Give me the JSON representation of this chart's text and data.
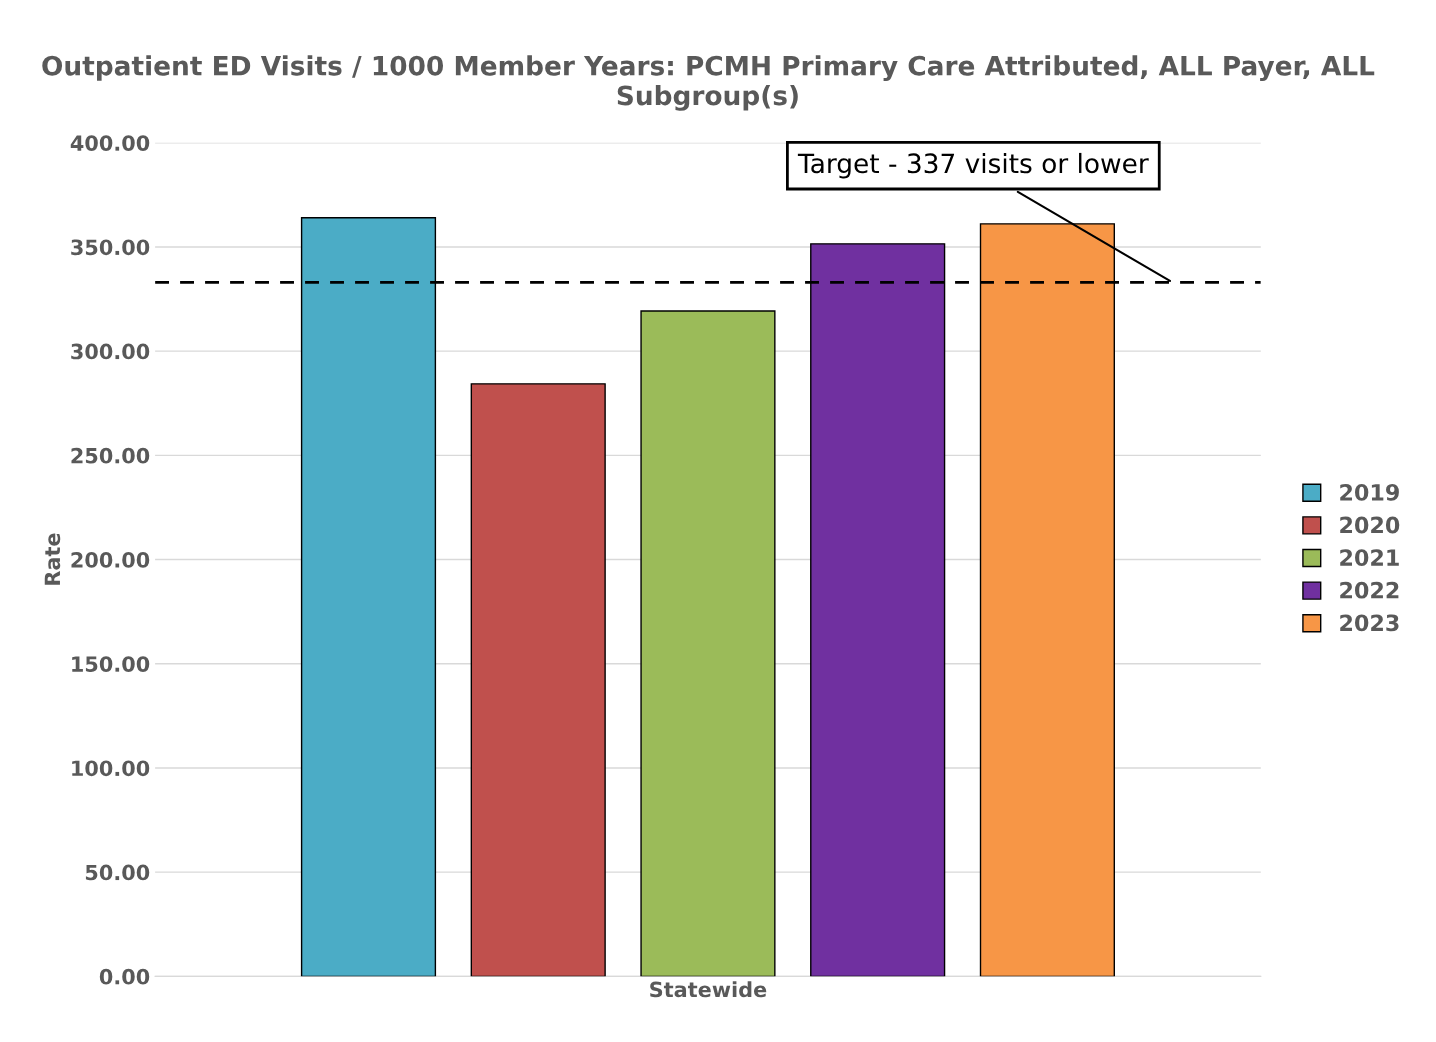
{
  "chart_data": {
    "type": "bar",
    "title": "Outpatient ED Visits / 1000 Member Years: PCMH Primary Care Attributed, ALL Payer, ALL Subgroup(s)",
    "ylabel": "Rate",
    "categories": [
      "Statewide"
    ],
    "series": [
      {
        "name": "2019",
        "color": "#4bacc6",
        "values": [
          364.0
        ]
      },
      {
        "name": "2020",
        "color": "#c0504d",
        "values": [
          284.3
        ]
      },
      {
        "name": "2021",
        "color": "#9bbb59",
        "values": [
          319.3
        ]
      },
      {
        "name": "2022",
        "color": "#7030a0",
        "values": [
          351.5
        ]
      },
      {
        "name": "2023",
        "color": "#f79646",
        "values": [
          361.1
        ]
      }
    ],
    "ylim": [
      0,
      400
    ],
    "yticks": [
      {
        "value": 0,
        "label": "0.00"
      },
      {
        "value": 50,
        "label": "50.00"
      },
      {
        "value": 100,
        "label": "100.00"
      },
      {
        "value": 150,
        "label": "150.00"
      },
      {
        "value": 200,
        "label": "200.00"
      },
      {
        "value": 250,
        "label": "250.00"
      },
      {
        "value": 300,
        "label": "300.00"
      },
      {
        "value": 350,
        "label": "350.00"
      },
      {
        "value": 400,
        "label": "400.00"
      }
    ],
    "ref_lines": [
      {
        "axis": "y",
        "value": 333,
        "label": "Target - 337 visits or lower",
        "color": "#000000",
        "line_style": "dashed"
      }
    ],
    "grid": "y",
    "legend": "right"
  }
}
